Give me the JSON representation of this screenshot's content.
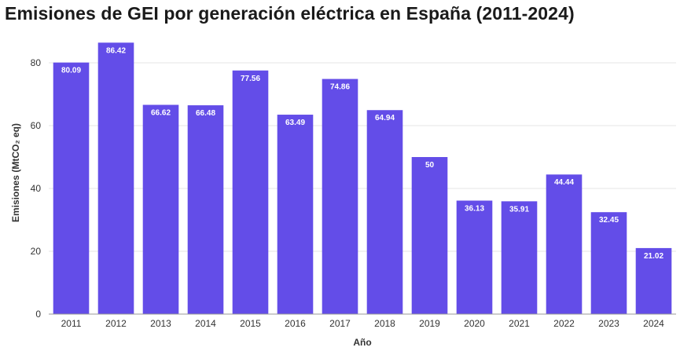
{
  "chart_data": {
    "type": "bar",
    "title": "Emisiones de GEI por generación eléctrica en España (2011-2024)",
    "xlabel": "Año",
    "ylabel": "Emisiones (MtCO₂ eq)",
    "categories": [
      "2011",
      "2012",
      "2013",
      "2014",
      "2015",
      "2016",
      "2017",
      "2018",
      "2019",
      "2020",
      "2021",
      "2022",
      "2023",
      "2024"
    ],
    "values": [
      80.09,
      86.42,
      66.62,
      66.48,
      77.56,
      63.49,
      74.86,
      64.94,
      50,
      36.13,
      35.91,
      44.44,
      32.45,
      21.02
    ],
    "data_labels": [
      "80.09",
      "86.42",
      "66.62",
      "66.48",
      "77.56",
      "63.49",
      "74.86",
      "64.94",
      "50",
      "36.13",
      "35.91",
      "44.44",
      "32.45",
      "21.02"
    ],
    "yticks": [
      0,
      20,
      40,
      60,
      80
    ],
    "ylim": [
      0,
      90
    ],
    "grid": true,
    "colors": {
      "bar": "#634de8",
      "grid": "#e6e6e6",
      "axis": "#999999"
    }
  }
}
